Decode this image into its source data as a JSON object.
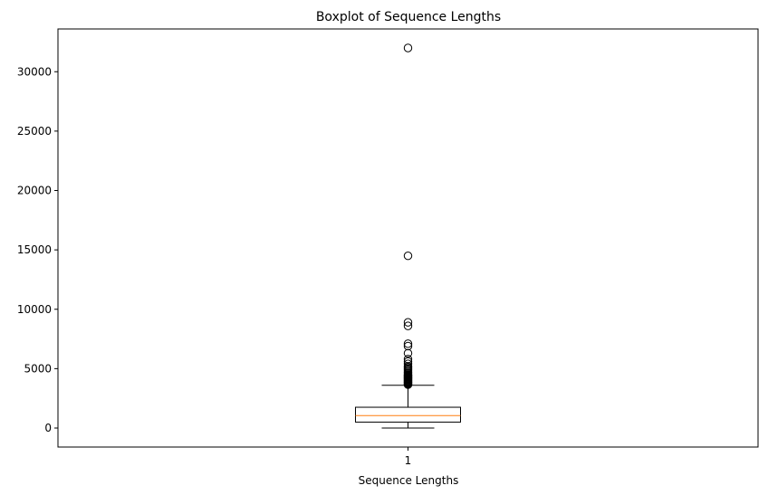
{
  "chart_data": {
    "type": "boxplot",
    "title": "Boxplot of Sequence Lengths",
    "xlabel": "Sequence Lengths",
    "ylabel": "",
    "categories": [
      "1"
    ],
    "ylim": [
      -1600,
      33600
    ],
    "yticks": [
      0,
      5000,
      10000,
      15000,
      20000,
      25000,
      30000
    ],
    "ytick_labels": [
      "0",
      "5000",
      "10000",
      "15000",
      "20000",
      "25000",
      "30000"
    ],
    "grid": false,
    "boxes": [
      {
        "category": "1",
        "whisker_low": 0,
        "q1": 500,
        "median": 1050,
        "q3": 1750,
        "whisker_high": 3600,
        "outliers": [
          3650,
          3700,
          3750,
          3800,
          3850,
          3900,
          3950,
          4000,
          4050,
          4100,
          4150,
          4200,
          4250,
          4300,
          4350,
          4400,
          4450,
          4500,
          4600,
          4700,
          4800,
          4900,
          5000,
          5100,
          5200,
          5400,
          5600,
          5800,
          6300,
          6900,
          7100,
          8600,
          8900,
          14500,
          32000
        ]
      }
    ],
    "colors": {
      "box": "#000000",
      "median": "#ff7f0e",
      "whisker": "#000000",
      "outlier": "#000000"
    }
  }
}
